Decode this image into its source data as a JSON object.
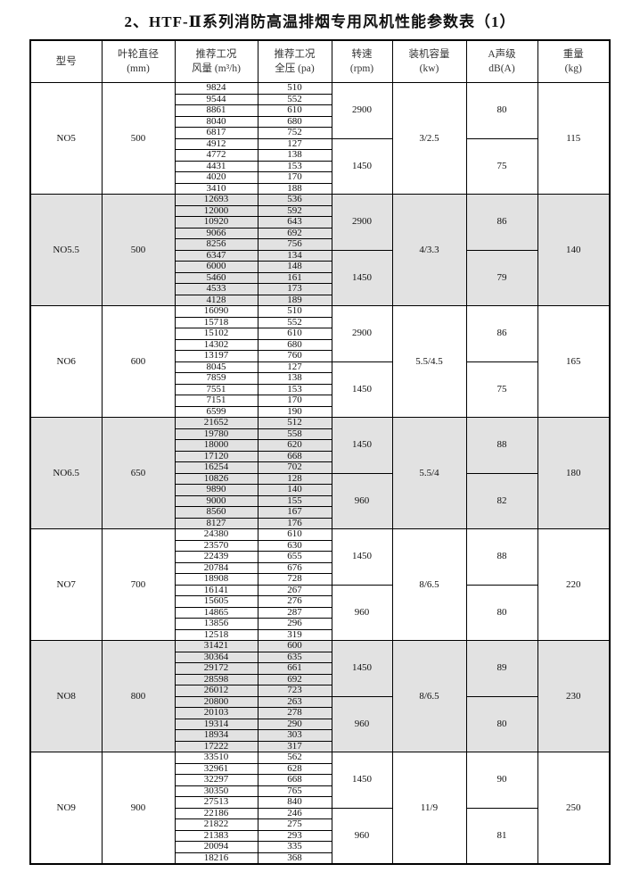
{
  "title": "2、HTF-Ⅱ系列消防高温排烟专用风机性能参数表（1）",
  "header": [
    [
      "型号"
    ],
    [
      "叶轮直径",
      "(mm)"
    ],
    [
      "推荐工况",
      "风量 (m³/h)"
    ],
    [
      "推荐工况",
      "全压 (pa)"
    ],
    [
      "转速",
      "(rpm)"
    ],
    [
      "装机容量",
      "(kw)"
    ],
    [
      "A声级",
      "dB(A)"
    ],
    [
      "重量",
      "(kg)"
    ]
  ],
  "groups": [
    {
      "model": "NO5",
      "diameter": 500,
      "flow": [
        9824,
        9544,
        8861,
        8040,
        6817,
        4912,
        4772,
        4431,
        4020,
        3410
      ],
      "pressure": [
        510,
        552,
        610,
        680,
        752,
        127,
        138,
        153,
        170,
        188
      ],
      "speed": [
        2900,
        1450
      ],
      "power": "3/2.5",
      "noise": [
        80,
        75
      ],
      "weight": 115
    },
    {
      "model": "NO5.5",
      "diameter": 500,
      "flow": [
        12693,
        12000,
        10920,
        9066,
        8256,
        6347,
        6000,
        5460,
        4533,
        4128
      ],
      "pressure": [
        536,
        592,
        643,
        692,
        756,
        134,
        148,
        161,
        173,
        189
      ],
      "speed": [
        2900,
        1450
      ],
      "power": "4/3.3",
      "noise": [
        86,
        79
      ],
      "weight": 140
    },
    {
      "model": "NO6",
      "diameter": 600,
      "flow": [
        16090,
        15718,
        15102,
        14302,
        13197,
        8045,
        7859,
        7551,
        7151,
        6599
      ],
      "pressure": [
        510,
        552,
        610,
        680,
        760,
        127,
        138,
        153,
        170,
        190
      ],
      "speed": [
        2900,
        1450
      ],
      "power": "5.5/4.5",
      "noise": [
        86,
        75
      ],
      "weight": 165
    },
    {
      "model": "NO6.5",
      "diameter": 650,
      "flow": [
        21652,
        19780,
        18000,
        17120,
        16254,
        10826,
        9890,
        9000,
        8560,
        8127
      ],
      "pressure": [
        512,
        558,
        620,
        668,
        702,
        128,
        140,
        155,
        167,
        176
      ],
      "speed": [
        1450,
        960
      ],
      "power": "5.5/4",
      "noise": [
        88,
        82
      ],
      "weight": 180
    },
    {
      "model": "NO7",
      "diameter": 700,
      "flow": [
        24380,
        23570,
        22439,
        20784,
        18908,
        16141,
        15605,
        14865,
        13856,
        12518
      ],
      "pressure": [
        610,
        630,
        655,
        676,
        728,
        267,
        276,
        287,
        296,
        319
      ],
      "speed": [
        1450,
        960
      ],
      "power": "8/6.5",
      "noise": [
        88,
        80
      ],
      "weight": 220
    },
    {
      "model": "NO8",
      "diameter": 800,
      "flow": [
        31421,
        30364,
        29172,
        28598,
        26012,
        20800,
        20103,
        19314,
        18934,
        17222
      ],
      "pressure": [
        600,
        635,
        661,
        692,
        723,
        263,
        278,
        290,
        303,
        317
      ],
      "speed": [
        1450,
        960
      ],
      "power": "8/6.5",
      "noise": [
        89,
        80
      ],
      "weight": 230
    },
    {
      "model": "NO9",
      "diameter": 900,
      "flow": [
        33510,
        32961,
        32297,
        30350,
        27513,
        22186,
        21822,
        21383,
        20094,
        18216
      ],
      "pressure": [
        562,
        628,
        668,
        765,
        840,
        246,
        275,
        293,
        335,
        368
      ],
      "speed": [
        1450,
        960
      ],
      "power": "11/9",
      "noise": [
        90,
        81
      ],
      "weight": 250
    }
  ]
}
